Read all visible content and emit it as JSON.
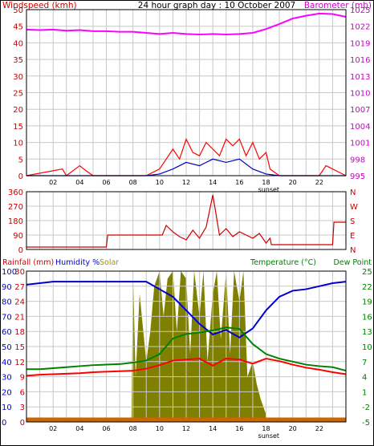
{
  "chart_data": [
    {
      "type": "line",
      "title": "24 hour graph day : 10 October 2007",
      "left_axis_label": "Windspeed (kmh)",
      "right_axis_label": "Barometer (mb)",
      "left_ticks": [
        "50",
        "45",
        "40",
        "35",
        "30",
        "25",
        "20",
        "15",
        "10",
        "5",
        "0"
      ],
      "right_ticks": [
        "1025",
        "1022",
        "1019",
        "1016",
        "1013",
        "1010",
        "1007",
        "1004",
        "1001",
        "998",
        "995"
      ],
      "ylim_left": [
        0,
        50
      ],
      "ylim_right": [
        995,
        1025
      ],
      "x_ticks": [
        "02",
        "04",
        "06",
        "08",
        "10",
        "12",
        "14",
        "16",
        "18",
        "20",
        "22"
      ],
      "x_marker_label": "sunset",
      "x_marker_hour": 18.2,
      "grid": true,
      "series": [
        {
          "name": "Barometer",
          "axis": "right",
          "color": "#ff00ff",
          "x": [
            0,
            1,
            2,
            3,
            4,
            5,
            6,
            7,
            8,
            9,
            10,
            11,
            12,
            13,
            14,
            15,
            16,
            17,
            18,
            19,
            20,
            21,
            22,
            23,
            24
          ],
          "values": [
            1021.4,
            1021.3,
            1021.4,
            1021.2,
            1021.3,
            1021.1,
            1021.1,
            1021.0,
            1021.0,
            1020.8,
            1020.6,
            1020.8,
            1020.6,
            1020.5,
            1020.6,
            1020.5,
            1020.6,
            1020.8,
            1021.5,
            1022.4,
            1023.4,
            1023.9,
            1024.3,
            1024.2,
            1023.7
          ]
        },
        {
          "name": "Wind gust",
          "axis": "left",
          "color": "#ff0000",
          "x": [
            0,
            2.7,
            3,
            4,
            4.3,
            5,
            9,
            10,
            10.5,
            11,
            11.5,
            12,
            12.5,
            13,
            13.5,
            14,
            14.5,
            15,
            15.5,
            16,
            16.5,
            17,
            17.5,
            18,
            18.3,
            19,
            22,
            22.5,
            23,
            24
          ],
          "values": [
            0,
            2,
            0,
            3,
            2,
            0,
            0,
            2,
            5,
            8,
            5,
            11,
            7,
            6,
            10,
            8,
            6,
            11,
            9,
            11,
            6,
            10,
            5,
            7,
            2,
            0,
            0,
            3,
            2,
            0
          ]
        },
        {
          "name": "Average windspeed",
          "axis": "left",
          "color": "#0000cc",
          "x": [
            0,
            9,
            10,
            11,
            12,
            13,
            14,
            15,
            16,
            17,
            18,
            19,
            24
          ],
          "values": [
            0,
            0,
            0.5,
            2,
            4,
            3,
            5,
            4,
            5,
            2,
            0.5,
            0,
            0
          ]
        }
      ]
    },
    {
      "type": "line",
      "left_ticks": [
        "360",
        "270",
        "180",
        "90",
        "0"
      ],
      "right_ticks": [
        "N",
        "W",
        "S",
        "E",
        "N"
      ],
      "ylim": [
        0,
        360
      ],
      "x_ticks": [
        "02",
        "04",
        "06",
        "08",
        "10",
        "12",
        "14",
        "16",
        "18",
        "20",
        "22"
      ],
      "x_marker_label": "sunset",
      "grid": true,
      "series": [
        {
          "name": "Wind direction",
          "color": "#cc0000",
          "x": [
            0,
            6,
            6.1,
            10.2,
            10.5,
            11,
            11.5,
            12,
            12.5,
            13,
            13.5,
            14,
            14.5,
            15,
            15.5,
            16,
            16.5,
            17,
            17.5,
            18,
            18.3,
            18.4,
            23,
            23.1,
            24
          ],
          "values": [
            15,
            15,
            90,
            90,
            150,
            110,
            80,
            60,
            120,
            70,
            140,
            340,
            90,
            130,
            80,
            110,
            90,
            70,
            100,
            40,
            70,
            30,
            30,
            170,
            170
          ]
        }
      ]
    },
    {
      "type": "line",
      "labels_top_left": [
        "Rainfall (mm)",
        "Humidity %",
        "Solar"
      ],
      "labels_top_right": [
        "Temperature (°C)",
        "Dew Point"
      ],
      "left_ticks": [
        "100",
        "90",
        "80",
        "70",
        "60",
        "50",
        "40",
        "30",
        "20",
        "10",
        "0"
      ],
      "left_ticks_inner": [
        "30",
        "27",
        "24",
        "21",
        "18",
        "15",
        "12",
        "9",
        "6",
        "3",
        "0"
      ],
      "right_ticks": [
        "25",
        "22",
        "19",
        "16",
        "13",
        "10",
        "7",
        "4",
        "1",
        "-2",
        "-5"
      ],
      "ylim_humidity": [
        0,
        100
      ],
      "ylim_temperature": [
        -5,
        25
      ],
      "x_ticks": [
        "02",
        "04",
        "06",
        "08",
        "10",
        "12",
        "14",
        "16",
        "18",
        "20",
        "22"
      ],
      "x_marker_label": "sunset",
      "grid": true,
      "series": [
        {
          "name": "Solar",
          "color": "#808000",
          "x": [
            0,
            7.9,
            8,
            8.2,
            8.5,
            9,
            9.3,
            9.6,
            10,
            10.3,
            10.6,
            11,
            11.3,
            11.6,
            12,
            12.3,
            12.6,
            13,
            13.3,
            13.6,
            14,
            14.3,
            14.6,
            15,
            15.3,
            15.6,
            16,
            16.3,
            16.6,
            17,
            17.3,
            17.6,
            18,
            18.1,
            24
          ],
          "values": [
            0,
            0,
            100,
            30,
            85,
            40,
            60,
            90,
            100,
            70,
            95,
            100,
            60,
            100,
            95,
            45,
            100,
            70,
            100,
            40,
            85,
            100,
            55,
            100,
            45,
            100,
            80,
            100,
            30,
            40,
            25,
            15,
            5,
            0,
            0
          ]
        },
        {
          "name": "Humidity",
          "color": "#0000cc",
          "x": [
            0,
            1,
            2,
            3,
            4,
            5,
            6,
            7,
            8,
            9,
            10,
            11,
            12,
            13,
            14,
            15,
            16,
            17,
            18,
            19,
            20,
            21,
            22,
            23,
            24
          ],
          "values": [
            91,
            92,
            93,
            93,
            93,
            93,
            93,
            93,
            93,
            93,
            88,
            83,
            74,
            65,
            58,
            61,
            56,
            62,
            74,
            83,
            87,
            88,
            90,
            92,
            93
          ]
        },
        {
          "name": "Temperature",
          "color": "#008000",
          "x": [
            0,
            1,
            2,
            3,
            4,
            5,
            6,
            7,
            8,
            9,
            10,
            11,
            12,
            13,
            14,
            15,
            16,
            17,
            18,
            19,
            20,
            21,
            22,
            23,
            24
          ],
          "values": [
            5.5,
            5.5,
            5.7,
            5.9,
            6.1,
            6.3,
            6.4,
            6.5,
            6.8,
            7.2,
            8.5,
            11.6,
            12.5,
            12.8,
            13.2,
            13.8,
            13.5,
            10.5,
            8.5,
            7.6,
            7.0,
            6.4,
            6.1,
            5.9,
            5.2
          ]
        },
        {
          "name": "Dew Point",
          "color": "#ff0000",
          "x": [
            0,
            1,
            2,
            3,
            4,
            5,
            6,
            7,
            8,
            9,
            10,
            11,
            12,
            13,
            14,
            15,
            16,
            17,
            18,
            19,
            20,
            21,
            22,
            23,
            24
          ],
          "values": [
            4.2,
            4.4,
            4.5,
            4.6,
            4.7,
            4.9,
            5.0,
            5.1,
            5.2,
            5.6,
            6.3,
            7.2,
            7.4,
            7.6,
            6.2,
            7.6,
            7.4,
            6.6,
            7.6,
            7.1,
            6.4,
            5.8,
            5.4,
            4.9,
            4.5
          ]
        },
        {
          "name": "Rainfall",
          "color": "#cc6600",
          "x": [
            0,
            24
          ],
          "values": [
            0,
            0
          ]
        }
      ]
    }
  ]
}
